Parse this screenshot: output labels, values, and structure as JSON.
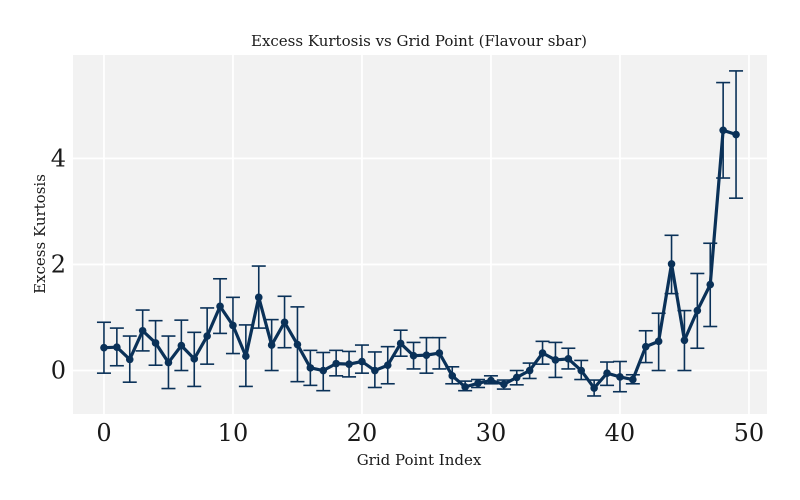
{
  "chart_data": {
    "type": "line",
    "title": "Excess Kurtosis vs Grid Point (Flavour sbar)",
    "xlabel": "Grid Point Index",
    "ylabel": "Excess Kurtosis",
    "xlim": [
      -2.4,
      51.4
    ],
    "ylim": [
      -0.82,
      5.95
    ],
    "xticks": [
      0,
      10,
      20,
      30,
      40,
      50
    ],
    "yticks": [
      0,
      2,
      4
    ],
    "grid": true,
    "colors": {
      "series": "#0a3158",
      "plot_background": "#f2f2f2",
      "grid": "#ffffff"
    },
    "x": [
      0,
      1,
      2,
      3,
      4,
      5,
      6,
      7,
      8,
      9,
      10,
      11,
      12,
      13,
      14,
      15,
      16,
      17,
      18,
      19,
      20,
      21,
      22,
      23,
      24,
      25,
      26,
      27,
      28,
      29,
      30,
      31,
      32,
      33,
      34,
      35,
      36,
      37,
      38,
      39,
      40,
      41,
      42,
      43,
      44,
      45,
      46,
      47,
      48,
      49
    ],
    "values": [
      0.43,
      0.44,
      0.21,
      0.75,
      0.52,
      0.15,
      0.47,
      0.22,
      0.65,
      1.21,
      0.85,
      0.27,
      1.38,
      0.48,
      0.91,
      0.49,
      0.05,
      0.0,
      0.13,
      0.12,
      0.17,
      0.0,
      0.1,
      0.51,
      0.28,
      0.29,
      0.33,
      -0.1,
      -0.31,
      -0.24,
      -0.19,
      -0.26,
      -0.13,
      0.0,
      0.33,
      0.2,
      0.22,
      0.0,
      -0.33,
      -0.05,
      -0.12,
      -0.17,
      0.45,
      0.55,
      2.01,
      0.57,
      1.13,
      1.62,
      4.53,
      4.45
    ],
    "err_low": [
      -0.05,
      0.09,
      -0.22,
      0.37,
      0.1,
      -0.34,
      0.0,
      -0.3,
      0.12,
      0.7,
      0.32,
      -0.3,
      0.8,
      0.0,
      0.43,
      -0.21,
      -0.28,
      -0.38,
      -0.1,
      -0.12,
      -0.05,
      -0.32,
      -0.25,
      0.27,
      0.03,
      -0.05,
      0.03,
      -0.25,
      -0.38,
      -0.32,
      -0.25,
      -0.35,
      -0.27,
      -0.15,
      0.12,
      -0.13,
      0.03,
      -0.17,
      -0.48,
      -0.28,
      -0.4,
      -0.25,
      0.15,
      0.0,
      1.45,
      0.0,
      0.42,
      0.83,
      3.63,
      3.25
    ],
    "err_high": [
      0.91,
      0.8,
      0.65,
      1.14,
      0.94,
      0.65,
      0.95,
      0.72,
      1.18,
      1.73,
      1.38,
      0.86,
      1.97,
      0.96,
      1.4,
      1.2,
      0.38,
      0.34,
      0.38,
      0.36,
      0.48,
      0.35,
      0.45,
      0.76,
      0.53,
      0.62,
      0.62,
      0.07,
      -0.2,
      -0.17,
      -0.1,
      -0.18,
      0.0,
      0.14,
      0.55,
      0.53,
      0.42,
      0.19,
      -0.18,
      0.16,
      0.17,
      -0.08,
      0.75,
      1.08,
      2.55,
      1.13,
      1.83,
      2.4,
      5.43,
      5.65
    ]
  }
}
